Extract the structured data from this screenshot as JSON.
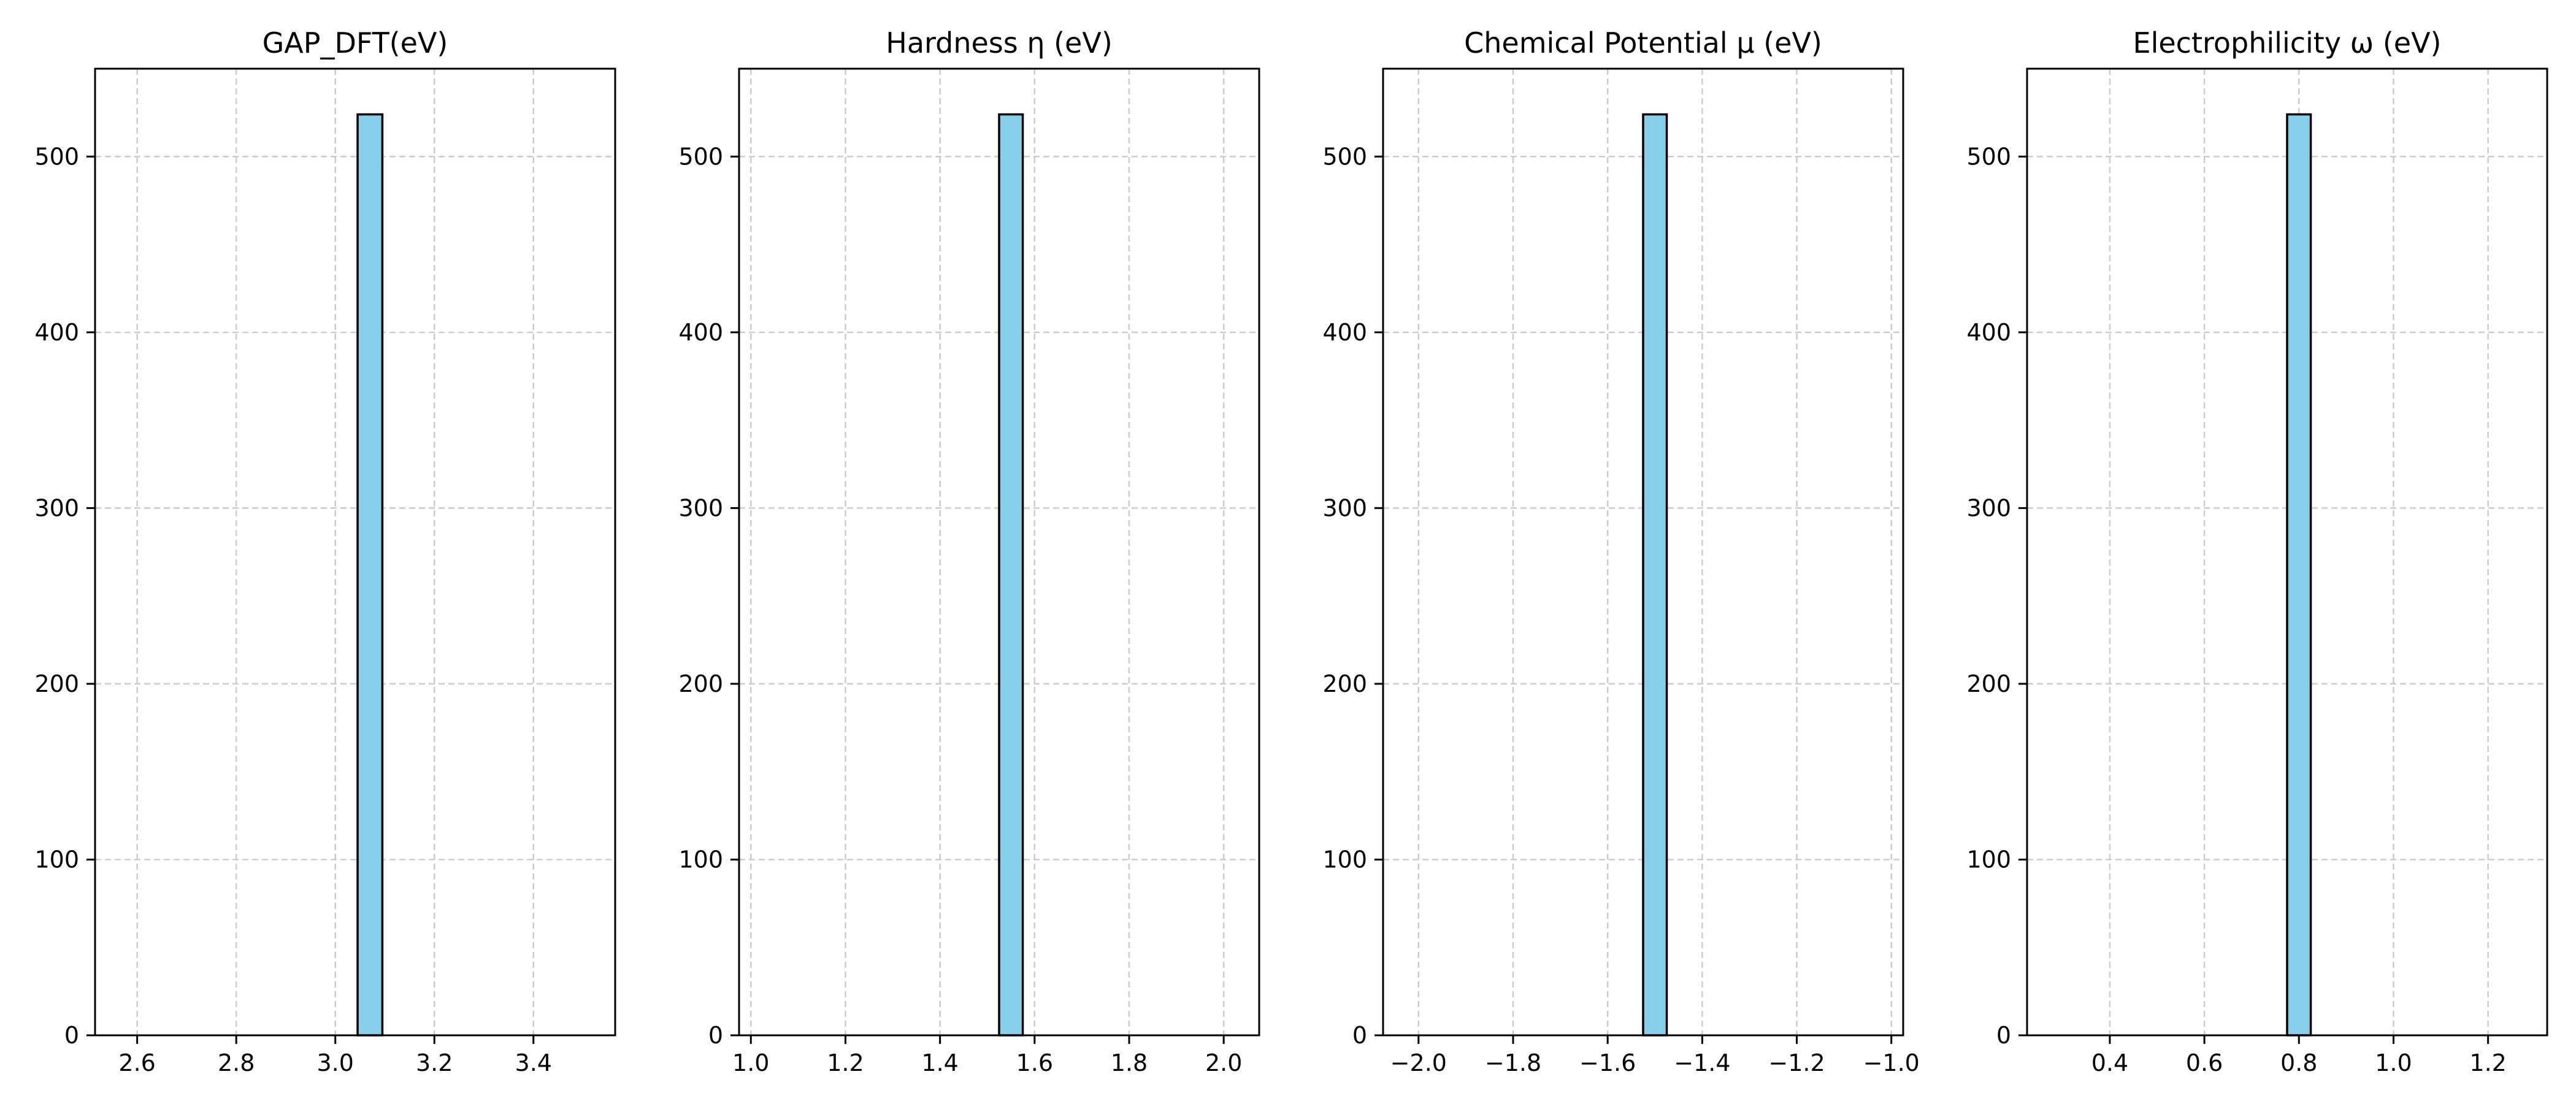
{
  "figure": {
    "background": "#ffffff",
    "bar_fill": "#87ceeb",
    "bar_edge": "#000000",
    "grid_color": "#cccccc"
  },
  "chart_data": [
    {
      "type": "bar",
      "title": "GAP_DFT(eV)",
      "xlabel": "",
      "ylabel": "",
      "xlim": [
        2.515,
        3.565
      ],
      "ylim": [
        0,
        550
      ],
      "xticks": [
        2.6,
        2.8,
        3.0,
        3.2,
        3.4
      ],
      "xtick_labels": [
        "2.6",
        "2.8",
        "3.0",
        "3.2",
        "3.4"
      ],
      "yticks": [
        0,
        100,
        200,
        300,
        400,
        500
      ],
      "ytick_labels": [
        "0",
        "100",
        "200",
        "300",
        "400",
        "500"
      ],
      "histogram_range": [
        2.565,
        3.535
      ],
      "bars": [
        {
          "x0": 3.045,
          "x1": 3.095,
          "value": 524
        }
      ],
      "grid": true
    },
    {
      "type": "bar",
      "title": "Hardness η (eV)",
      "xlabel": "",
      "ylabel": "",
      "xlim": [
        0.975,
        2.075
      ],
      "ylim": [
        0,
        550
      ],
      "xticks": [
        1.0,
        1.2,
        1.4,
        1.6,
        1.8,
        2.0
      ],
      "xtick_labels": [
        "1.0",
        "1.2",
        "1.4",
        "1.6",
        "1.8",
        "2.0"
      ],
      "yticks": [
        0,
        100,
        200,
        300,
        400,
        500
      ],
      "ytick_labels": [
        "0",
        "100",
        "200",
        "300",
        "400",
        "500"
      ],
      "histogram_range": [
        1.025,
        2.025
      ],
      "bars": [
        {
          "x0": 1.525,
          "x1": 1.575,
          "value": 524
        }
      ],
      "grid": true
    },
    {
      "type": "bar",
      "title": "Chemical Potential μ (eV)",
      "xlabel": "",
      "ylabel": "",
      "xlim": [
        -2.075,
        -0.975
      ],
      "ylim": [
        0,
        550
      ],
      "xticks": [
        -2.0,
        -1.8,
        -1.6,
        -1.4,
        -1.2,
        -1.0
      ],
      "xtick_labels": [
        "−2.0",
        "−1.8",
        "−1.6",
        "−1.4",
        "−1.2",
        "−1.0"
      ],
      "yticks": [
        0,
        100,
        200,
        300,
        400,
        500
      ],
      "ytick_labels": [
        "0",
        "100",
        "200",
        "300",
        "400",
        "500"
      ],
      "histogram_range": [
        -2.025,
        -1.025
      ],
      "bars": [
        {
          "x0": -1.525,
          "x1": -1.475,
          "value": 524
        }
      ],
      "grid": true
    },
    {
      "type": "bar",
      "title": "Electrophilicity ω (eV)",
      "xlabel": "",
      "ylabel": "",
      "xlim": [
        0.225,
        1.325
      ],
      "ylim": [
        0,
        550
      ],
      "xticks": [
        0.4,
        0.6,
        0.8,
        1.0,
        1.2
      ],
      "xtick_labels": [
        "0.4",
        "0.6",
        "0.8",
        "1.0",
        "1.2"
      ],
      "yticks": [
        0,
        100,
        200,
        300,
        400,
        500
      ],
      "ytick_labels": [
        "0",
        "100",
        "200",
        "300",
        "400",
        "500"
      ],
      "histogram_range": [
        0.275,
        1.275
      ],
      "bars": [
        {
          "x0": 0.775,
          "x1": 0.825,
          "value": 524
        }
      ],
      "grid": true
    }
  ]
}
